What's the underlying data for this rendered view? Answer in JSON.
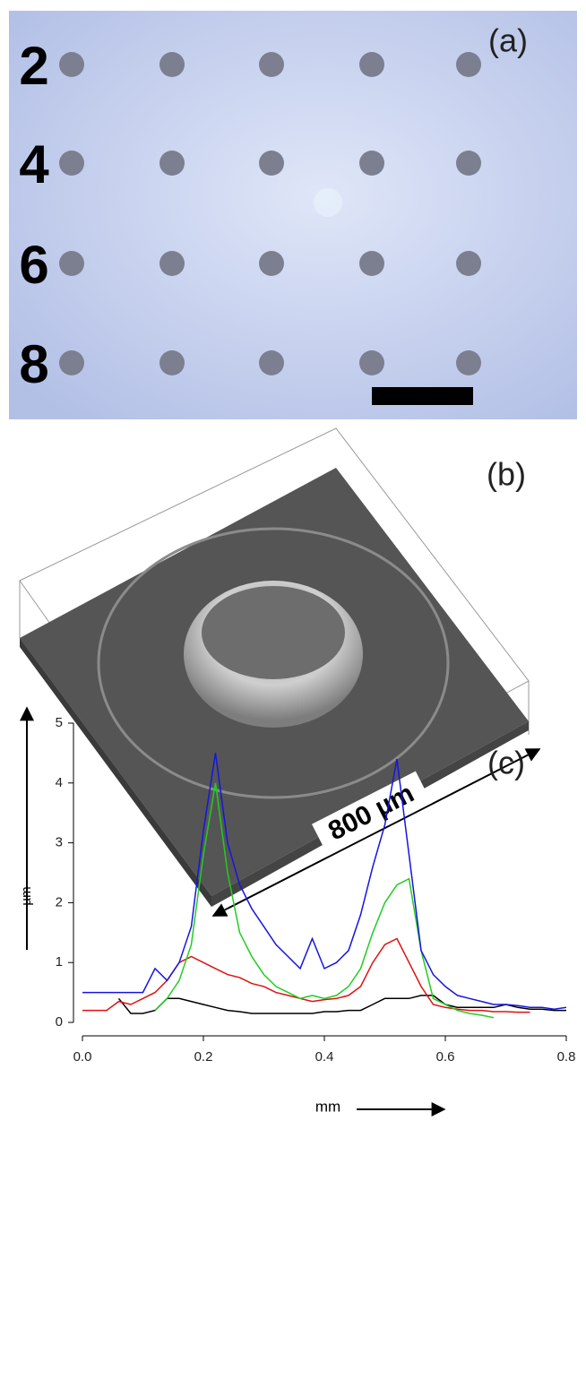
{
  "panel_a": {
    "label": "(a)",
    "row_labels": [
      "2",
      "4",
      "6",
      "8"
    ]
  },
  "panel_b": {
    "label": "(b)",
    "scale_label": "800 µm"
  },
  "chart_data": {
    "type": "line",
    "label": "(c)",
    "x_label": "mm",
    "y_label": "µm",
    "x": [
      0,
      0.02,
      0.04,
      0.06,
      0.08,
      0.1,
      0.12,
      0.14,
      0.16,
      0.18,
      0.2,
      0.22,
      0.24,
      0.26,
      0.28,
      0.3,
      0.32,
      0.34,
      0.36,
      0.38,
      0.4,
      0.42,
      0.44,
      0.46,
      0.48,
      0.5,
      0.52,
      0.54,
      0.56,
      0.58,
      0.6,
      0.62,
      0.64,
      0.66,
      0.68,
      0.7,
      0.72,
      0.74,
      0.76,
      0.78,
      0.8
    ],
    "series": [
      {
        "color": "#000000",
        "values": [
          null,
          null,
          null,
          0.4,
          0.15,
          0.15,
          0.2,
          0.4,
          0.4,
          0.35,
          0.3,
          0.25,
          0.2,
          0.18,
          0.15,
          0.15,
          0.15,
          0.15,
          0.15,
          0.15,
          0.18,
          0.18,
          0.2,
          0.2,
          0.3,
          0.4,
          0.4,
          0.4,
          0.45,
          0.45,
          0.3,
          0.25,
          0.25,
          0.25,
          0.25,
          0.3,
          0.25,
          0.22,
          0.22,
          0.2,
          0.2
        ]
      },
      {
        "color": "#e01010",
        "values": [
          0.2,
          0.2,
          0.2,
          0.35,
          0.3,
          0.4,
          0.5,
          0.7,
          1.0,
          1.1,
          1.0,
          0.9,
          0.8,
          0.75,
          0.65,
          0.6,
          0.5,
          0.45,
          0.4,
          0.35,
          0.38,
          0.4,
          0.45,
          0.6,
          1.0,
          1.3,
          1.4,
          1.0,
          0.6,
          0.3,
          0.25,
          0.22,
          0.2,
          0.2,
          0.18,
          0.18,
          0.17,
          0.17,
          null,
          null,
          null
        ]
      },
      {
        "color": "#22cc22",
        "values": [
          null,
          null,
          null,
          null,
          null,
          null,
          0.2,
          0.4,
          0.7,
          1.3,
          2.8,
          4.0,
          2.5,
          1.5,
          1.1,
          0.8,
          0.6,
          0.5,
          0.4,
          0.45,
          0.4,
          0.45,
          0.6,
          0.9,
          1.5,
          2.0,
          2.3,
          2.4,
          1.2,
          0.4,
          0.3,
          0.2,
          0.15,
          0.12,
          0.08,
          null,
          null,
          null,
          null,
          null,
          null
        ]
      },
      {
        "color": "#1515e0",
        "values": [
          0.5,
          0.5,
          0.5,
          0.5,
          0.5,
          0.5,
          0.9,
          0.7,
          1.0,
          1.6,
          3.2,
          4.5,
          3.0,
          2.3,
          1.9,
          1.6,
          1.3,
          1.1,
          0.9,
          1.4,
          0.9,
          1.0,
          1.2,
          1.8,
          2.6,
          3.3,
          4.4,
          2.8,
          1.2,
          0.8,
          0.6,
          0.45,
          0.4,
          0.35,
          0.3,
          0.3,
          0.28,
          0.25,
          0.25,
          0.22,
          0.25
        ]
      }
    ],
    "xlim": [
      0,
      0.8
    ],
    "xticks": [
      {
        "value": 0,
        "label": "0.0"
      },
      0.2,
      0.4,
      0.6,
      0.8
    ],
    "ylim": [
      0,
      5
    ],
    "yticks": [
      0,
      1,
      2,
      3,
      4,
      5
    ]
  }
}
